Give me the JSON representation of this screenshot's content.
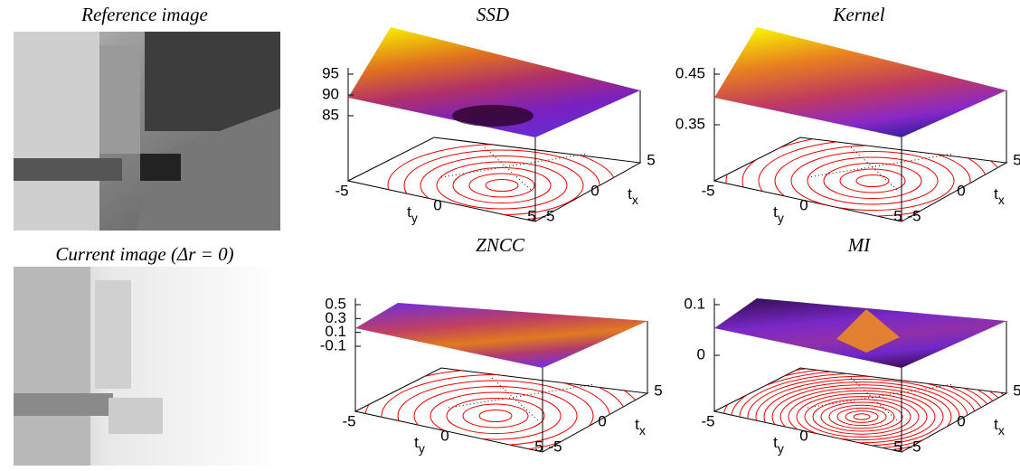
{
  "images": [
    {
      "title": "Reference image"
    },
    {
      "title": "Current image (Δr = 0)"
    }
  ],
  "plots": [
    {
      "title": "SSD",
      "z_ticks": [
        "95",
        "90",
        "85"
      ],
      "ty_ticks": [
        "-5",
        "0",
        "5"
      ],
      "tx_ticks": [
        "5",
        "0",
        "-5"
      ],
      "tx_label": {
        "base": "t",
        "sub": "x"
      },
      "ty_label": {
        "base": "t",
        "sub": "y"
      }
    },
    {
      "title": "Kernel",
      "z_ticks": [
        "0.45",
        "0.35"
      ],
      "ty_ticks": [
        "-5",
        "0",
        "5"
      ],
      "tx_ticks": [
        "5",
        "0",
        "-5"
      ],
      "tx_label": {
        "base": "t",
        "sub": "x"
      },
      "ty_label": {
        "base": "t",
        "sub": "y"
      }
    },
    {
      "title": "ZNCC",
      "z_ticks": [
        "0.5",
        "0.3",
        "0.1",
        "-0.1"
      ],
      "ty_ticks": [
        "-5",
        "0",
        "5"
      ],
      "tx_ticks": [
        "5",
        "0",
        "-5"
      ],
      "tx_label": {
        "base": "t",
        "sub": "x"
      },
      "ty_label": {
        "base": "t",
        "sub": "y"
      }
    },
    {
      "title": "MI",
      "z_ticks": [
        "0.1",
        "0"
      ],
      "ty_ticks": [
        "-5",
        "0",
        "5"
      ],
      "tx_ticks": [
        "5",
        "0",
        "-5"
      ],
      "tx_label": {
        "base": "t",
        "sub": "x"
      },
      "ty_label": {
        "base": "t",
        "sub": "y"
      }
    }
  ]
}
